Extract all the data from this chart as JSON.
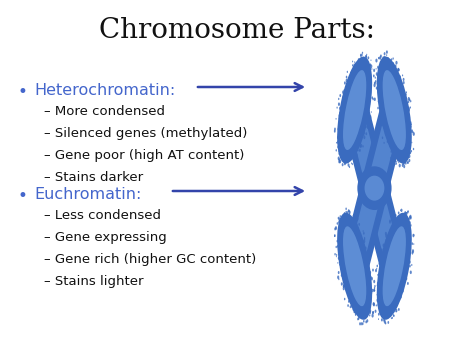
{
  "title": "Chromosome Parts:",
  "title_fontsize": 20,
  "title_color": "#111111",
  "background_color": "#ffffff",
  "bullet_color": "#4466cc",
  "sub_text_color": "#111111",
  "arrow_color": "#3344aa",
  "section1_header": "Heterochromatin:",
  "section1_items": [
    "More condensed",
    "Silenced genes (methylated)",
    "Gene poor (high AT content)",
    "Stains darker"
  ],
  "section2_header": "Euchromatin:",
  "section2_items": [
    "Less condensed",
    "Gene expressing",
    "Gene rich (higher GC content)",
    "Stains lighter"
  ],
  "header_fontsize": 11.5,
  "item_fontsize": 9.5,
  "bullet_fontsize": 12,
  "chrom_color_outer": "#3a6bbf",
  "chrom_color_inner": "#7aaae8",
  "chrom_color_centromere": "#4a7ad0",
  "line_color": "#222222"
}
